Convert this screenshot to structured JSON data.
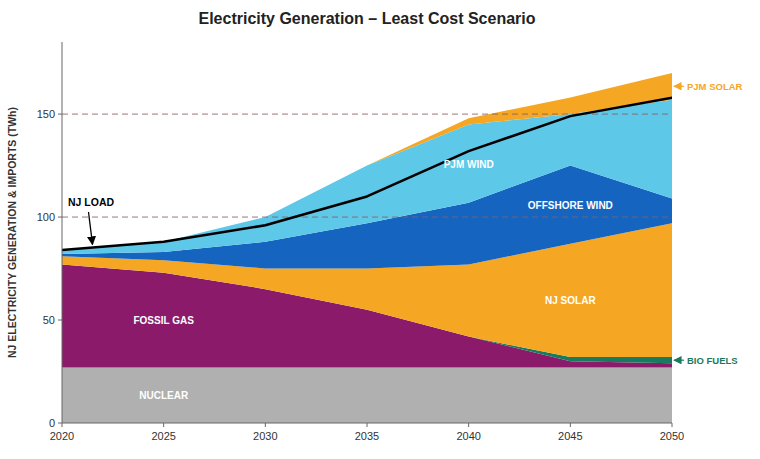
{
  "chart_data": {
    "type": "area",
    "stacked": true,
    "title": "Electricity Generation – Least Cost Scenario",
    "ylabel": "NJ ELECTRICITY GENERATION & IMPORTS (TWh)",
    "x": [
      2020,
      2025,
      2030,
      2035,
      2040,
      2045,
      2050
    ],
    "series": [
      {
        "name": "NUCLEAR",
        "color": "#b0b0b0",
        "values": [
          27,
          27,
          27,
          27,
          27,
          27,
          27
        ]
      },
      {
        "name": "FOSSIL GAS",
        "color": "#8B1A6B",
        "values": [
          50,
          46,
          38,
          28,
          15,
          3,
          2
        ]
      },
      {
        "name": "BIO FUELS",
        "color": "#1a7a5e",
        "values": [
          0,
          0,
          0,
          0,
          0,
          2,
          3
        ]
      },
      {
        "name": "NJ SOLAR",
        "color": "#F5A623",
        "values": [
          4,
          6,
          10,
          20,
          35,
          55,
          65
        ]
      },
      {
        "name": "OFFSHORE WIND",
        "color": "#1565C0",
        "values": [
          1,
          4,
          13,
          22,
          30,
          38,
          12
        ]
      },
      {
        "name": "PJM WIND",
        "color": "#5ec8e8",
        "values": [
          2,
          5,
          12,
          28,
          38,
          25,
          48
        ]
      },
      {
        "name": "PJM SOLAR",
        "color": "#F5A623",
        "values": [
          0,
          0,
          0,
          0,
          3,
          8,
          13
        ]
      },
      {
        "name": "NJ LOAD",
        "type": "line",
        "color": "black",
        "values": [
          84,
          88,
          96,
          110,
          132,
          149,
          158
        ]
      }
    ],
    "xlim": [
      2020,
      2050
    ],
    "xticks": [
      2020,
      2025,
      2030,
      2035,
      2040,
      2045,
      2050
    ],
    "ylim": [
      0,
      185
    ],
    "yticks": [
      0,
      50,
      100,
      150
    ],
    "reference_lines": [
      150,
      100
    ],
    "grid": false
  }
}
